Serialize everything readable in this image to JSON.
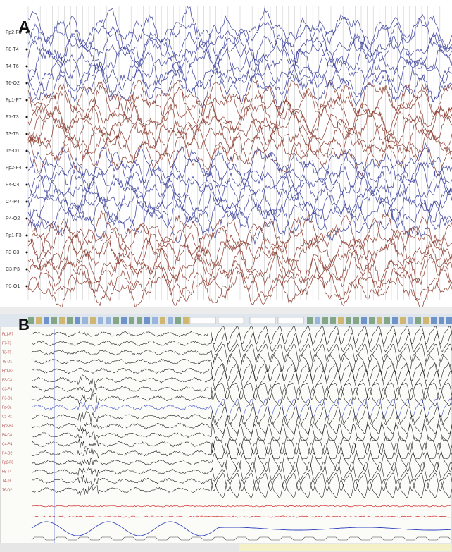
{
  "panel_a": {
    "label": "A",
    "channels": [
      "Fp2-F8",
      "F8-T4",
      "T4-T6",
      "T6-O2",
      "Fp1-F7",
      "F7-T3",
      "T3-T5",
      "T5-O1",
      "Fp2-F4",
      "F4-C4",
      "C4-P4",
      "P4-O2",
      "Fp1-F3",
      "F3-C3",
      "C3-P3",
      "P3-O1"
    ]
  },
  "panel_b": {
    "label": "B",
    "channels": [
      "Fp1-F7",
      "F7-T3",
      "T3-T5",
      "T5-O1",
      "Fp1-F3",
      "F3-C3",
      "C3-P3",
      "P3-O1",
      "Fz-Cz",
      "Cz-Pz",
      "Fp2-F4",
      "F4-C4",
      "C4-P4",
      "P4-O2",
      "Fp2-F8",
      "F8-T4",
      "T4-T6",
      "T6-O2"
    ]
  }
}
